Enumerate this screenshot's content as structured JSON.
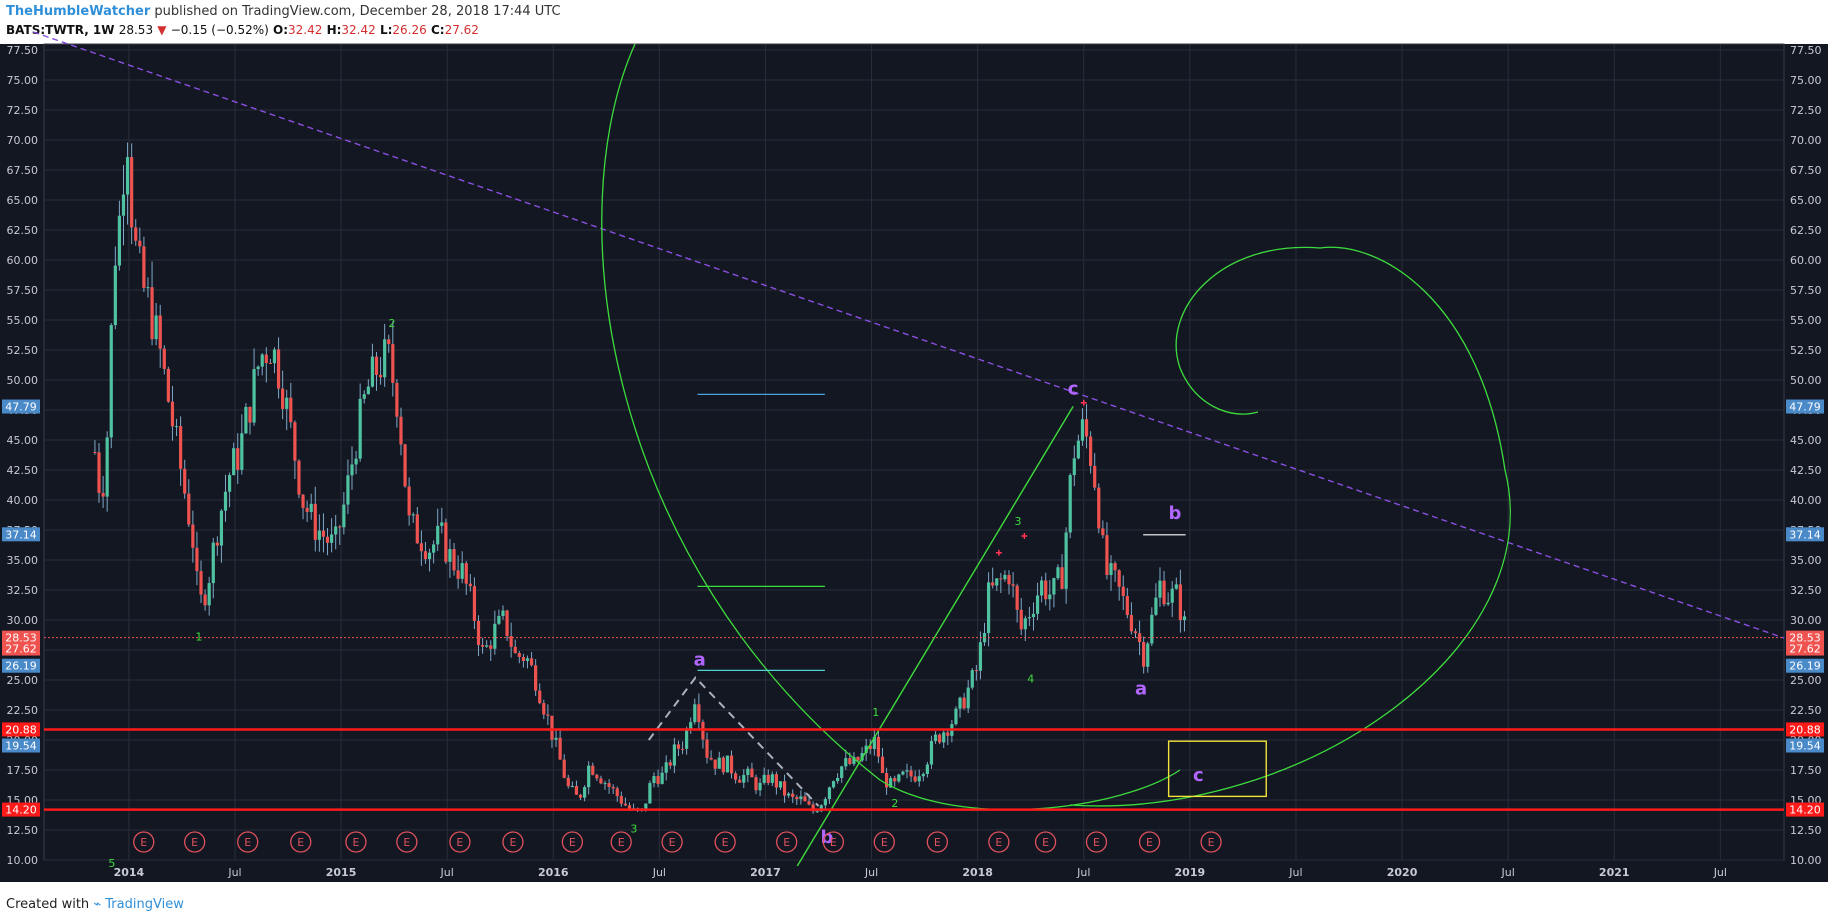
{
  "header": {
    "author": "TheHumbleWatcher",
    "published": "published on TradingView.com, December 28, 2018 17:44 UTC",
    "symbol": "BATS:TWTR, 1W",
    "last": "28.53",
    "change": "−0.15 (−0.52%)",
    "o_label": "O:",
    "o": "32.42",
    "h_label": "H:",
    "h": "32.42",
    "l_label": "L:",
    "l": "26.26",
    "c_label": "C:",
    "c": "27.62"
  },
  "footer": {
    "created": "Created with",
    "brand": "TradingView"
  },
  "colors": {
    "bg": "#131722",
    "grid": "#2a2e39",
    "up": "#4fc3a1",
    "down": "#ef5350",
    "wick": "#7fa8c8",
    "green": "#3ddc3d",
    "purple": "#b066ff",
    "red_line": "#ff1a1a"
  },
  "chart_data": {
    "type": "candlestick",
    "ylim": [
      10,
      78
    ],
    "y_ticks": [
      "10.00",
      "12.50",
      "15.00",
      "17.50",
      "20.00",
      "22.50",
      "25.00",
      "27.50",
      "30.00",
      "32.50",
      "35.00",
      "37.50",
      "40.00",
      "42.50",
      "45.00",
      "47.50",
      "50.00",
      "52.50",
      "55.00",
      "57.50",
      "60.00",
      "62.50",
      "65.00",
      "67.50",
      "70.00",
      "72.50",
      "75.00",
      "77.50"
    ],
    "x_range": [
      2013.6,
      2021.8
    ],
    "x_ticks": [
      {
        "t": 2014.0,
        "label": "2014",
        "bold": true
      },
      {
        "t": 2014.5,
        "label": "Jul"
      },
      {
        "t": 2015.0,
        "label": "2015",
        "bold": true
      },
      {
        "t": 2015.5,
        "label": "Jul"
      },
      {
        "t": 2016.0,
        "label": "2016",
        "bold": true
      },
      {
        "t": 2016.5,
        "label": "Jul"
      },
      {
        "t": 2017.0,
        "label": "2017",
        "bold": true
      },
      {
        "t": 2017.5,
        "label": "Jul"
      },
      {
        "t": 2018.0,
        "label": "2018",
        "bold": true
      },
      {
        "t": 2018.5,
        "label": "Jul"
      },
      {
        "t": 2019.0,
        "label": "2019",
        "bold": true
      },
      {
        "t": 2019.5,
        "label": "Jul"
      },
      {
        "t": 2020.0,
        "label": "2020",
        "bold": true
      },
      {
        "t": 2020.5,
        "label": "Jul"
      },
      {
        "t": 2021.0,
        "label": "2021",
        "bold": true
      },
      {
        "t": 2021.5,
        "label": "Jul"
      }
    ],
    "price_path": [
      [
        2013.84,
        44
      ],
      [
        2013.87,
        40
      ],
      [
        2013.9,
        46
      ],
      [
        2013.93,
        60
      ],
      [
        2013.96,
        64
      ],
      [
        2013.99,
        72
      ],
      [
        2014.02,
        62
      ],
      [
        2014.06,
        58
      ],
      [
        2014.1,
        56
      ],
      [
        2014.15,
        52
      ],
      [
        2014.2,
        47
      ],
      [
        2014.25,
        42
      ],
      [
        2014.3,
        37
      ],
      [
        2014.33,
        31
      ],
      [
        2014.37,
        33
      ],
      [
        2014.42,
        38
      ],
      [
        2014.47,
        42
      ],
      [
        2014.52,
        44
      ],
      [
        2014.57,
        48
      ],
      [
        2014.62,
        52
      ],
      [
        2014.67,
        53
      ],
      [
        2014.72,
        50
      ],
      [
        2014.77,
        45
      ],
      [
        2014.82,
        40
      ],
      [
        2014.87,
        38
      ],
      [
        2014.92,
        37
      ],
      [
        2014.97,
        36
      ],
      [
        2015.02,
        40
      ],
      [
        2015.07,
        45
      ],
      [
        2015.12,
        49
      ],
      [
        2015.17,
        51
      ],
      [
        2015.22,
        52
      ],
      [
        2015.27,
        48
      ],
      [
        2015.32,
        38
      ],
      [
        2015.37,
        37
      ],
      [
        2015.42,
        36
      ],
      [
        2015.47,
        37
      ],
      [
        2015.52,
        35
      ],
      [
        2015.57,
        34
      ],
      [
        2015.62,
        31
      ],
      [
        2015.67,
        27
      ],
      [
        2015.72,
        29
      ],
      [
        2015.77,
        30
      ],
      [
        2015.82,
        27
      ],
      [
        2015.87,
        27
      ],
      [
        2015.92,
        25
      ],
      [
        2015.97,
        22
      ],
      [
        2016.02,
        19
      ],
      [
        2016.07,
        16
      ],
      [
        2016.12,
        15
      ],
      [
        2016.17,
        18
      ],
      [
        2016.22,
        17
      ],
      [
        2016.27,
        16
      ],
      [
        2016.32,
        15
      ],
      [
        2016.37,
        14
      ],
      [
        2016.42,
        14
      ],
      [
        2016.47,
        17
      ],
      [
        2016.52,
        17
      ],
      [
        2016.57,
        19
      ],
      [
        2016.62,
        20
      ],
      [
        2016.67,
        24
      ],
      [
        2016.72,
        19
      ],
      [
        2016.77,
        18
      ],
      [
        2016.82,
        18
      ],
      [
        2016.87,
        17
      ],
      [
        2016.92,
        17
      ],
      [
        2016.97,
        16
      ],
      [
        2017.02,
        17
      ],
      [
        2017.07,
        16
      ],
      [
        2017.12,
        15
      ],
      [
        2017.17,
        15
      ],
      [
        2017.22,
        14
      ],
      [
        2017.27,
        15
      ],
      [
        2017.32,
        17
      ],
      [
        2017.37,
        18
      ],
      [
        2017.42,
        18
      ],
      [
        2017.47,
        19
      ],
      [
        2017.52,
        20
      ],
      [
        2017.55,
        17
      ],
      [
        2017.6,
        16
      ],
      [
        2017.65,
        17
      ],
      [
        2017.7,
        17
      ],
      [
        2017.75,
        18
      ],
      [
        2017.8,
        20
      ],
      [
        2017.85,
        21
      ],
      [
        2017.9,
        22
      ],
      [
        2017.95,
        24
      ],
      [
        2018.0,
        26
      ],
      [
        2018.05,
        32
      ],
      [
        2018.1,
        33
      ],
      [
        2018.15,
        34
      ],
      [
        2018.2,
        29
      ],
      [
        2018.25,
        31
      ],
      [
        2018.3,
        33
      ],
      [
        2018.35,
        32
      ],
      [
        2018.4,
        34
      ],
      [
        2018.45,
        44
      ],
      [
        2018.5,
        46
      ],
      [
        2018.53,
        44
      ],
      [
        2018.56,
        41
      ],
      [
        2018.6,
        34
      ],
      [
        2018.65,
        33
      ],
      [
        2018.7,
        31
      ],
      [
        2018.75,
        29
      ],
      [
        2018.78,
        27
      ],
      [
        2018.82,
        30
      ],
      [
        2018.86,
        33
      ],
      [
        2018.9,
        32
      ],
      [
        2018.94,
        32
      ],
      [
        2018.97,
        30
      ],
      [
        2018.99,
        28
      ]
    ],
    "h_levels": [
      {
        "price": 20.88,
        "label": "20.88",
        "color": "#ff1a1a",
        "line": "solid"
      },
      {
        "price": 14.2,
        "label": "14.20",
        "color": "#ff1a1a",
        "line": "solid"
      },
      {
        "price": 28.53,
        "label": "28.53",
        "color": "#ef5350",
        "line": "dotted"
      }
    ],
    "price_tags": [
      {
        "price": 47.79,
        "label": "47.79",
        "color": "#4a8ac9"
      },
      {
        "price": 37.14,
        "label": "37.14",
        "color": "#4a8ac9"
      },
      {
        "price": 28.53,
        "label": "28.53",
        "color": "#ef5350"
      },
      {
        "price": 27.62,
        "label": "27.62",
        "color": "#ef5350"
      },
      {
        "price": 26.19,
        "label": "26.19",
        "color": "#4a8ac9"
      },
      {
        "price": 20.88,
        "label": "20.88",
        "color": "#ff1a1a"
      },
      {
        "price": 19.54,
        "label": "19.54",
        "color": "#4a8ac9"
      },
      {
        "price": 14.2,
        "label": "14.20",
        "color": "#ff1a1a"
      }
    ],
    "trendline": {
      "from": [
        2013.55,
        79
      ],
      "to": [
        2021.8,
        28.5
      ]
    },
    "wave_labels": [
      {
        "t": 2014.33,
        "p": 28.3,
        "label": "1",
        "color": "#3ddc3d",
        "size": 11
      },
      {
        "t": 2015.24,
        "p": 54.4,
        "label": "2",
        "color": "#3ddc3d",
        "size": 11
      },
      {
        "t": 2016.38,
        "p": 12.3,
        "label": "3",
        "color": "#3ddc3d",
        "size": 11
      },
      {
        "t": 2013.92,
        "p": 9.4,
        "label": "5",
        "color": "#3ddc3d",
        "size": 11
      },
      {
        "t": 2017.52,
        "p": 22.0,
        "label": "1",
        "color": "#3ddc3d",
        "size": 11
      },
      {
        "t": 2017.61,
        "p": 14.4,
        "label": "2",
        "color": "#3ddc3d",
        "size": 11
      },
      {
        "t": 2018.19,
        "p": 37.9,
        "label": "3",
        "color": "#3ddc3d",
        "size": 11
      },
      {
        "t": 2018.25,
        "p": 24.8,
        "label": "4",
        "color": "#3ddc3d",
        "size": 11
      },
      {
        "t": 2016.69,
        "p": 26.2,
        "label": "a",
        "color": "#b066ff",
        "size": 18
      },
      {
        "t": 2017.29,
        "p": 11.4,
        "label": "b",
        "color": "#b066ff",
        "size": 18
      },
      {
        "t": 2018.45,
        "p": 48.8,
        "label": "c",
        "color": "#b066ff",
        "size": 18
      },
      {
        "t": 2018.93,
        "p": 38.4,
        "label": "b",
        "color": "#b066ff",
        "size": 18
      },
      {
        "t": 2018.77,
        "p": 23.8,
        "label": "a",
        "color": "#b066ff",
        "size": 18
      },
      {
        "t": 2019.04,
        "p": 16.6,
        "label": "c",
        "color": "#b066ff",
        "size": 18
      }
    ],
    "earnings_markers": [
      2014.07,
      2014.31,
      2014.56,
      2014.81,
      2015.07,
      2015.31,
      2015.56,
      2015.81,
      2016.09,
      2016.32,
      2016.56,
      2016.81,
      2017.1,
      2017.32,
      2017.56,
      2017.81,
      2018.1,
      2018.32,
      2018.56,
      2018.81,
      2019.1
    ],
    "earnings_label": "E"
  }
}
